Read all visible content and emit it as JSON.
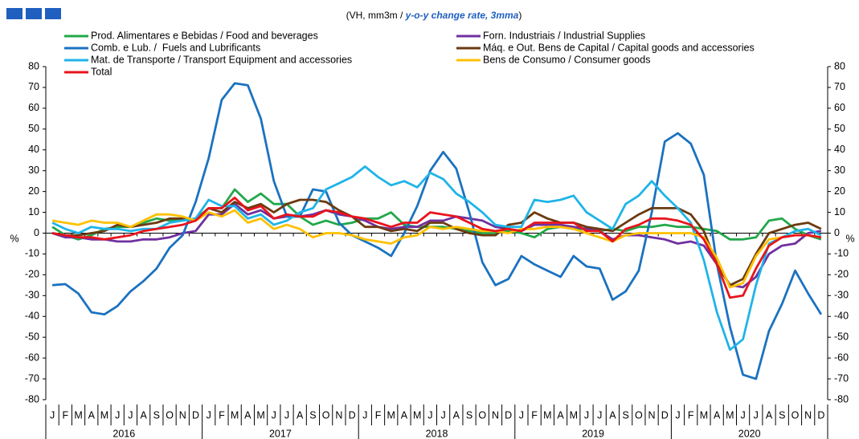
{
  "chart_data": {
    "type": "line",
    "subtitle": [
      "(VH, mm3m / ",
      "y-o-y change rate, 3mma",
      ")"
    ],
    "y_label": "%",
    "y2_label": "%",
    "categories": [
      "J",
      "F",
      "M",
      "A",
      "M",
      "J",
      "J",
      "A",
      "S",
      "O",
      "N",
      "D",
      "J",
      "F",
      "M",
      "A",
      "M",
      "J",
      "J",
      "A",
      "S",
      "O",
      "N",
      "D",
      "J",
      "F",
      "M",
      "A",
      "M",
      "J",
      "J",
      "A",
      "S",
      "O",
      "N",
      "D",
      "J",
      "F",
      "M",
      "A",
      "M",
      "J",
      "J",
      "A",
      "S",
      "O",
      "N",
      "D",
      "J",
      "F",
      "M",
      "A",
      "M",
      "J",
      "J",
      "A",
      "S",
      "O",
      "N",
      "D"
    ],
    "year_labels": [
      "2016",
      "2017",
      "2018",
      "2019",
      "2020"
    ],
    "ylim": [
      -80,
      80
    ],
    "yticks": [
      -80,
      -70,
      -60,
      -50,
      -40,
      -30,
      -20,
      -10,
      0,
      10,
      20,
      30,
      40,
      50,
      60,
      70,
      80
    ],
    "y2lim": [
      -80,
      80
    ],
    "y2ticks": [
      -80,
      -70,
      -60,
      -50,
      -40,
      -30,
      -20,
      -10,
      0,
      10,
      20,
      30,
      40,
      50,
      60,
      70,
      80
    ],
    "series": [
      {
        "name": "Prod. Alimentares e Bebidas / Food and beverages",
        "color": "#22a84a",
        "values": [
          3,
          -1,
          -3,
          -1,
          2,
          3,
          3,
          5,
          7,
          6,
          6,
          7,
          12,
          12,
          21,
          15,
          19,
          14,
          14,
          8,
          4,
          6,
          4,
          5,
          7,
          7,
          10,
          4,
          3,
          3,
          3,
          2,
          1,
          0,
          0,
          1,
          0,
          -2,
          2,
          3,
          2,
          2,
          1,
          2,
          1,
          3,
          3,
          4,
          3,
          3,
          2,
          1,
          -3,
          -3,
          -2,
          6,
          7,
          2,
          -1,
          -3
        ]
      },
      {
        "name": "Forn. Industriais / Industrial Supplies",
        "color": "#7030a0",
        "values": [
          0,
          -2,
          -2,
          -3,
          -3,
          -4,
          -4,
          -3,
          -3,
          -2,
          0,
          1,
          9,
          9,
          14,
          9,
          11,
          7,
          8,
          8,
          9,
          11,
          9,
          8,
          6,
          3,
          2,
          3,
          3,
          6,
          6,
          8,
          7,
          6,
          3,
          2,
          1,
          4,
          4,
          4,
          3,
          2,
          1,
          -3,
          -1,
          -1,
          -2,
          -3,
          -5,
          -4,
          -6,
          -15,
          -25,
          -26,
          -21,
          -10,
          -6,
          -5,
          0,
          1
        ]
      },
      {
        "name": "Comb. e Lub. /  Fuels and Lubrificants",
        "color": "#1b72c0",
        "values": [
          -25,
          -24.5,
          -29,
          -38,
          -39,
          -35,
          -28,
          -23,
          -17,
          -7,
          -1,
          15,
          36,
          64,
          72,
          71,
          55,
          25,
          8,
          8,
          21,
          20,
          5,
          -1,
          -4,
          -7,
          -11,
          0,
          13,
          30,
          39,
          31,
          10,
          -14,
          -25,
          -22,
          -11,
          -15,
          -18,
          -21,
          -11,
          -16,
          -17,
          -32,
          -28,
          -18,
          10,
          44,
          48,
          43,
          28,
          -15,
          -45,
          -68,
          -70,
          -47,
          -34,
          -18,
          -29,
          -39
        ]
      },
      {
        "name": "Máq. e Out. Bens de Capital / Capital goods and accessories",
        "color": "#6b3a10",
        "values": [
          0,
          -1,
          -1,
          0,
          1,
          4,
          3,
          4,
          5,
          7,
          7,
          6,
          12,
          10,
          15,
          12,
          14,
          10,
          14,
          16,
          16,
          15,
          11,
          8,
          3,
          3,
          1,
          2,
          1,
          5,
          5,
          2,
          0,
          -1,
          -1,
          4,
          5,
          10,
          7,
          5,
          5,
          3,
          2,
          1,
          5,
          9,
          12,
          12,
          12,
          9,
          1,
          -15,
          -25,
          -22,
          -10,
          0,
          2,
          4,
          5,
          2
        ]
      },
      {
        "name": "Mat. de Transporte / Transport Equipment and accessories",
        "color": "#1fb4e8",
        "values": [
          5,
          2,
          0,
          3,
          2,
          2,
          1,
          2,
          2,
          5,
          6,
          7,
          16,
          13,
          13,
          7,
          9,
          4,
          6,
          10,
          12,
          21,
          24,
          27,
          32,
          27,
          23,
          25,
          22,
          29,
          26,
          19,
          15,
          10,
          4,
          3,
          3,
          16,
          15,
          16,
          18,
          10,
          6,
          2,
          14,
          18,
          25,
          18,
          12,
          5,
          -13,
          -38,
          -56,
          -51,
          -25,
          -5,
          -2,
          1,
          2,
          -1
        ]
      },
      {
        "name": "Bens de Consumo / Consumer goods",
        "color": "#ffc000",
        "values": [
          6,
          5,
          4,
          6,
          5,
          5,
          3,
          6,
          9,
          9,
          8,
          6,
          10,
          8,
          11,
          5,
          7,
          2,
          4,
          2,
          -2,
          0,
          0,
          -1,
          -3,
          -4,
          -5,
          -2,
          -1,
          3,
          2,
          3,
          2,
          1,
          1,
          0,
          2,
          2,
          3,
          3,
          2,
          0,
          -2,
          -4,
          -1,
          0,
          0,
          0,
          0,
          0,
          -2,
          -12,
          -26,
          -24,
          -11,
          -3,
          -2,
          -1,
          -1,
          -2
        ]
      },
      {
        "name": "Total",
        "color": "#e8141c",
        "values": [
          0,
          -1,
          -2,
          -2,
          -3,
          -2,
          -1,
          1,
          2,
          3,
          4,
          6,
          12,
          12,
          17,
          11,
          13,
          7,
          9,
          8,
          8,
          11,
          10,
          8,
          7,
          5,
          3,
          5,
          5,
          10,
          9,
          8,
          5,
          2,
          1,
          2,
          1,
          5,
          5,
          5,
          5,
          1,
          1,
          -4,
          2,
          4,
          7,
          7,
          6,
          4,
          -3,
          -15,
          -31,
          -30,
          -17,
          -6,
          -2,
          -1,
          -1,
          -2
        ]
      }
    ]
  }
}
